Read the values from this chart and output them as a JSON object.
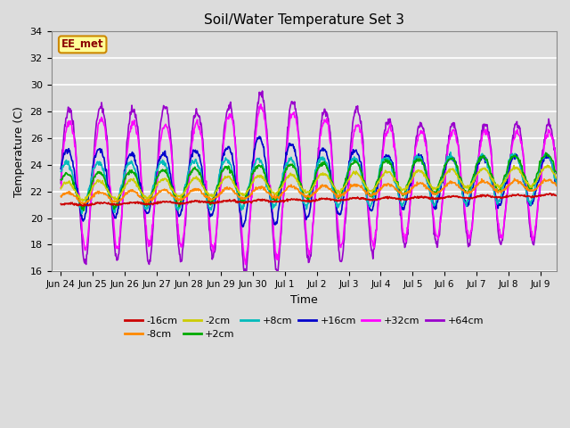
{
  "title": "Soil/Water Temperature Set 3",
  "xlabel": "Time",
  "ylabel": "Temperature (C)",
  "ylim": [
    16,
    34
  ],
  "yticks": [
    16,
    18,
    20,
    22,
    24,
    26,
    28,
    30,
    32,
    34
  ],
  "fig_bg_color": "#dcdcdc",
  "plot_bg_color": "#dcdcdc",
  "grid_color": "#ffffff",
  "annotation_text": "EE_met",
  "annotation_fg": "#8b0000",
  "annotation_bg": "#ffff99",
  "annotation_border": "#cc8800",
  "series_colors": {
    "-16cm": "#cc0000",
    "-8cm": "#ff8800",
    "-2cm": "#cccc00",
    "+2cm": "#00aa00",
    "+8cm": "#00bbbb",
    "+16cm": "#0000cc",
    "+32cm": "#ff00ff",
    "+64cm": "#9900cc"
  },
  "x_tick_labels": [
    "Jun 24",
    "Jun 25",
    "Jun 26",
    "Jun 27",
    "Jun 28",
    "Jun 29",
    "Jun 30",
    "Jul 1",
    "Jul 2",
    "Jul 3",
    "Jul 4",
    "Jul 5",
    "Jul 6",
    "Jul 7",
    "Jul 8",
    "Jul 9"
  ],
  "figsize": [
    6.4,
    4.8
  ],
  "dpi": 100
}
